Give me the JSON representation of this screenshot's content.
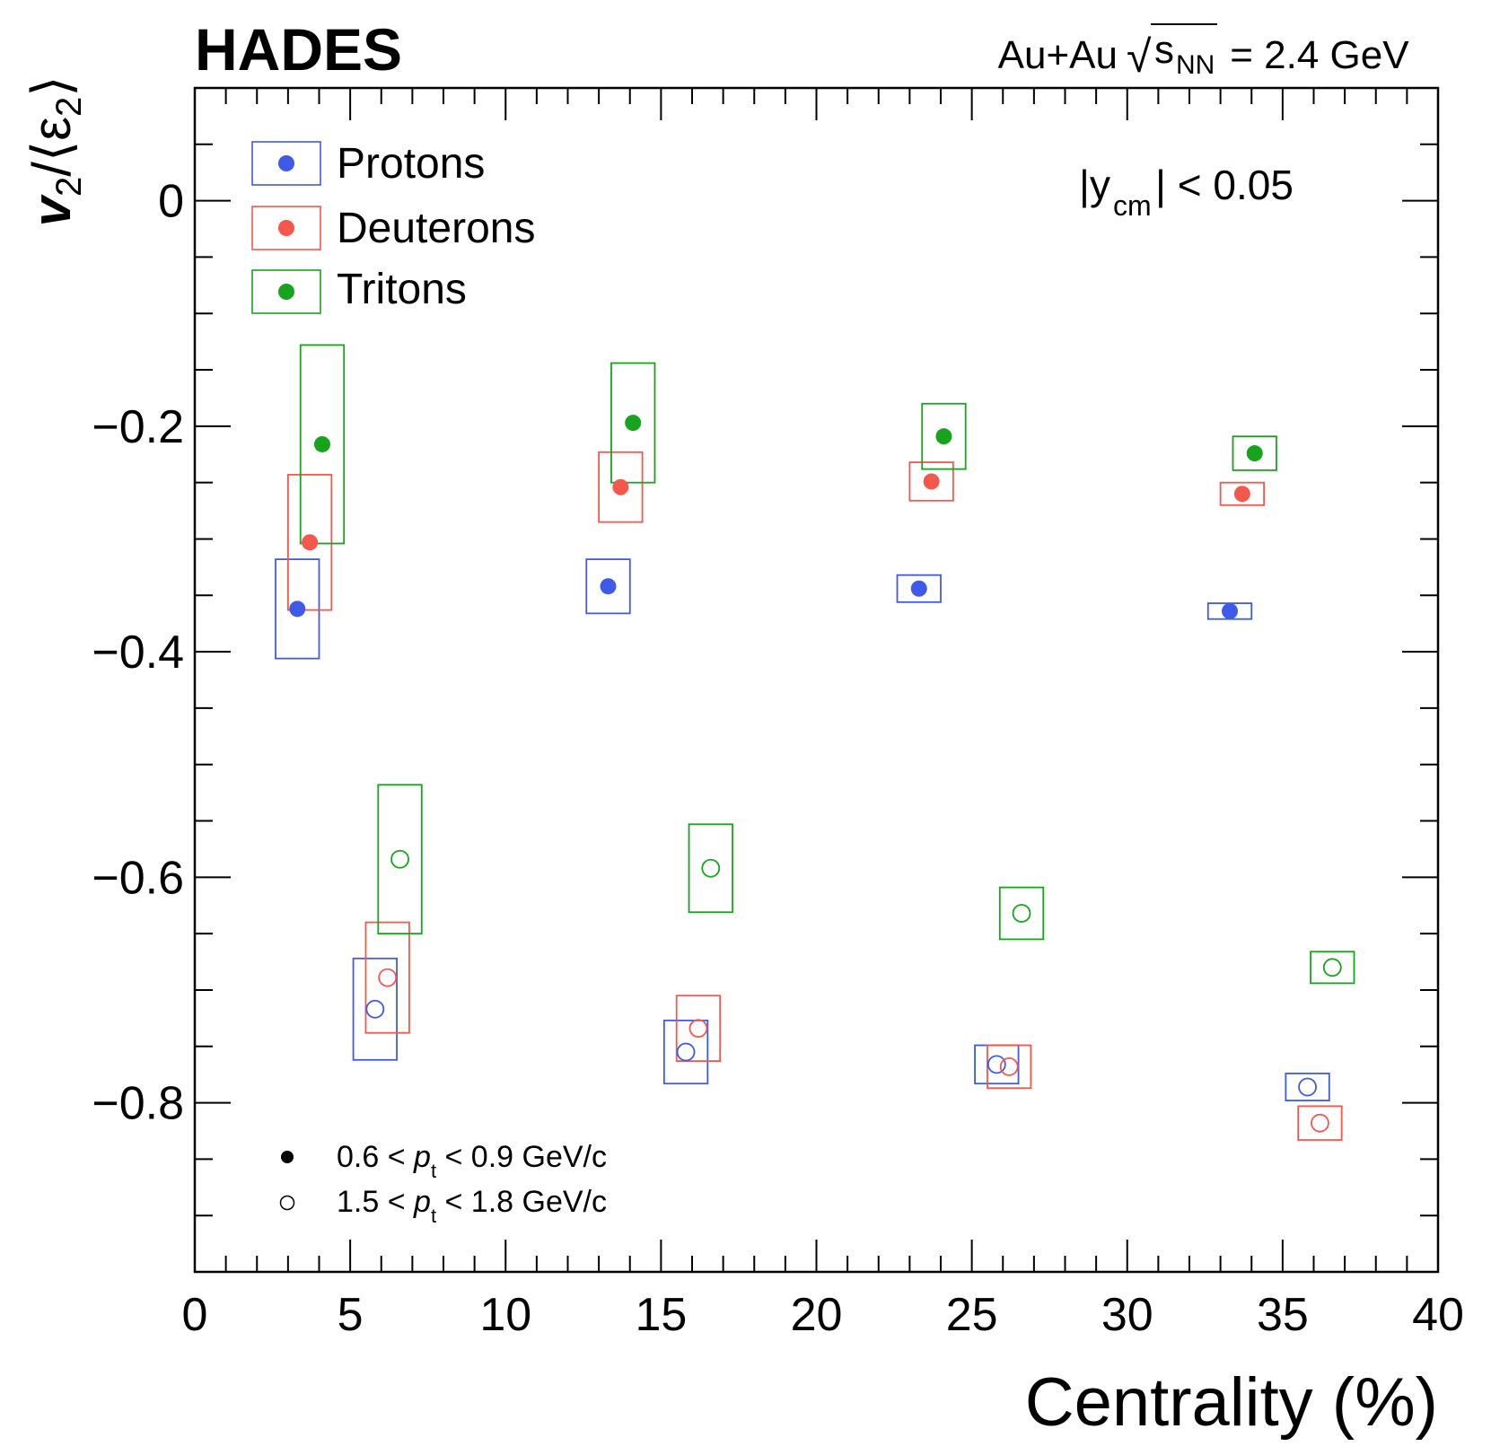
{
  "chart_data": {
    "type": "scatter",
    "title": "HADES",
    "collision_label": "Au+Au",
    "sqrt_symbol": "√",
    "energy_s": "s",
    "energy_sub": "NN",
    "energy_value": " = 2.4 GeV",
    "rapidity_cut": {
      "prefix": "|y",
      "sub": "cm",
      "suffix": "| < 0.05"
    },
    "xlabel": "Centrality (%)",
    "ylabel": {
      "v": "v",
      "v_sub": "2",
      "mid": "/⟨ε",
      "eps_sub": "2",
      "end": "⟩"
    },
    "xlim": [
      0,
      40
    ],
    "ylim": [
      -0.95,
      0.1
    ],
    "x_ticks": [
      0,
      5,
      10,
      15,
      20,
      25,
      30,
      35,
      40
    ],
    "x_tick_labels": [
      "0",
      "5",
      "10",
      "15",
      "20",
      "25",
      "30",
      "35",
      "40"
    ],
    "y_ticks": [
      0,
      -0.2,
      -0.4,
      -0.6,
      -0.8
    ],
    "y_tick_labels": [
      "0",
      "−0.2",
      "−0.4",
      "−0.6",
      "−0.8"
    ],
    "colors": {
      "protons": "#3f5ae8",
      "deuterons": "#f4574c",
      "tritons": "#17a41c"
    },
    "legend_particles": [
      "Protons",
      "Deuterons",
      "Tritons"
    ],
    "legend_pt": [
      {
        "pre": "0.6 < ",
        "p": "p",
        "sub": "t",
        "post": " < 0.9 GeV/c",
        "filled": true
      },
      {
        "pre": "1.5 < ",
        "p": "p",
        "sub": "t",
        "post": " < 1.8 GeV/c",
        "filled": false
      }
    ],
    "series": [
      {
        "name": "Protons",
        "pt_bin": "0.6 < pt < 0.9 GeV/c",
        "filled": true,
        "points": [
          {
            "x": 3.3,
            "y": -0.362,
            "sys": 0.044
          },
          {
            "x": 13.3,
            "y": -0.342,
            "sys": 0.024
          },
          {
            "x": 23.3,
            "y": -0.344,
            "sys": 0.012
          },
          {
            "x": 33.3,
            "y": -0.364,
            "sys": 0.007
          }
        ]
      },
      {
        "name": "Deuterons",
        "pt_bin": "0.6 < pt < 0.9 GeV/c",
        "filled": true,
        "points": [
          {
            "x": 3.7,
            "y": -0.303,
            "sys": 0.06
          },
          {
            "x": 13.7,
            "y": -0.254,
            "sys": 0.031
          },
          {
            "x": 23.7,
            "y": -0.249,
            "sys": 0.017
          },
          {
            "x": 33.7,
            "y": -0.26,
            "sys": 0.01
          }
        ]
      },
      {
        "name": "Tritons",
        "pt_bin": "0.6 < pt < 0.9 GeV/c",
        "filled": true,
        "points": [
          {
            "x": 4.1,
            "y": -0.216,
            "sys": 0.088
          },
          {
            "x": 14.1,
            "y": -0.197,
            "sys": 0.053
          },
          {
            "x": 24.1,
            "y": -0.209,
            "sys": 0.029
          },
          {
            "x": 34.1,
            "y": -0.224,
            "sys": 0.015
          }
        ]
      },
      {
        "name": "Protons",
        "pt_bin": "1.5 < pt < 1.8 GeV/c",
        "filled": false,
        "points": [
          {
            "x": 5.8,
            "y": -0.717,
            "sys": 0.045
          },
          {
            "x": 15.8,
            "y": -0.755,
            "sys": 0.028
          },
          {
            "x": 25.8,
            "y": -0.766,
            "sys": 0.017
          },
          {
            "x": 35.8,
            "y": -0.786,
            "sys": 0.012
          }
        ]
      },
      {
        "name": "Deuterons",
        "pt_bin": "1.5 < pt < 1.8 GeV/c",
        "filled": false,
        "points": [
          {
            "x": 6.2,
            "y": -0.689,
            "sys": 0.049
          },
          {
            "x": 16.2,
            "y": -0.734,
            "sys": 0.029
          },
          {
            "x": 26.2,
            "y": -0.768,
            "sys": 0.019
          },
          {
            "x": 36.2,
            "y": -0.818,
            "sys": 0.015
          }
        ]
      },
      {
        "name": "Tritons",
        "pt_bin": "1.5 < pt < 1.8 GeV/c",
        "filled": false,
        "points": [
          {
            "x": 6.6,
            "y": -0.584,
            "sys": 0.066
          },
          {
            "x": 16.6,
            "y": -0.592,
            "sys": 0.039
          },
          {
            "x": 26.6,
            "y": -0.632,
            "sys": 0.023
          },
          {
            "x": 36.6,
            "y": -0.68,
            "sys": 0.014
          }
        ]
      }
    ]
  }
}
